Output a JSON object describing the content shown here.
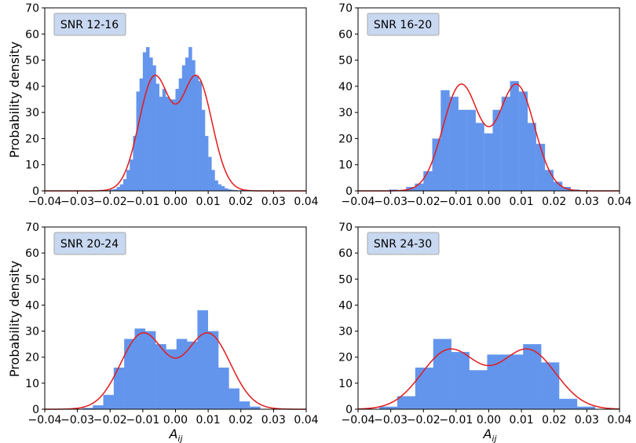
{
  "figure": {
    "ylabel": "Probability density",
    "xlabel": "A",
    "xlabel_sub": "ij"
  },
  "colors": {
    "bars": "#6495ED",
    "fit": "#E31A1C",
    "legend_bg": "#C8D8F0",
    "legend_border": "#A8A8A8"
  },
  "chart_data": [
    {
      "type": "bar",
      "title": "SNR 12-16",
      "xlim": [
        -0.04,
        0.04
      ],
      "ylim": [
        0,
        70
      ],
      "xticks": [
        -0.04,
        -0.03,
        -0.02,
        -0.01,
        0.0,
        0.01,
        0.02,
        0.03,
        0.04
      ],
      "xtick_labels": [
        "−0.04",
        "−0.03",
        "−0.02",
        "−0.01",
        "0.00",
        "0.01",
        "0.02",
        "0.03",
        "0.04"
      ],
      "yticks": [
        0,
        10,
        20,
        30,
        40,
        50,
        60,
        70
      ],
      "ytick_labels": [
        "0",
        "10",
        "20",
        "30",
        "40",
        "50",
        "60",
        "70"
      ],
      "bin_width": 0.001,
      "bin_left_edges": [
        -0.023,
        -0.022,
        -0.021,
        -0.02,
        -0.019,
        -0.018,
        -0.017,
        -0.016,
        -0.015,
        -0.014,
        -0.013,
        -0.012,
        -0.011,
        -0.01,
        -0.009,
        -0.008,
        -0.007,
        -0.006,
        -0.005,
        -0.004,
        -0.003,
        -0.002,
        -0.001,
        0.0,
        0.001,
        0.002,
        0.003,
        0.004,
        0.005,
        0.006,
        0.007,
        0.008,
        0.009,
        0.01,
        0.011,
        0.012,
        0.013,
        0.014,
        0.015,
        0.016,
        0.017,
        0.018,
        0.019,
        0.02
      ],
      "density": [
        0.2,
        0.3,
        0.2,
        0.5,
        0.7,
        1.5,
        2.5,
        4.5,
        8,
        12,
        21,
        38,
        43,
        53,
        55,
        51,
        48,
        41,
        36,
        39,
        36,
        35,
        35,
        39,
        43,
        48,
        51,
        55,
        50,
        44,
        42,
        31,
        21,
        13,
        8,
        4,
        2.5,
        1.8,
        1.0,
        0.6,
        0.4,
        0.3,
        0.2,
        0.5
      ],
      "fit": {
        "type": "two-gaussian",
        "components": [
          {
            "mu": -0.0065,
            "sigma": 0.0047,
            "weight": 0.5
          },
          {
            "mu": 0.0065,
            "sigma": 0.0047,
            "weight": 0.5
          }
        ]
      }
    },
    {
      "type": "bar",
      "title": "SNR 16-20",
      "xlim": [
        -0.04,
        0.04
      ],
      "ylim": [
        0,
        70
      ],
      "xticks": [
        -0.04,
        -0.03,
        -0.02,
        -0.01,
        0.0,
        0.01,
        0.02,
        0.03,
        0.04
      ],
      "xtick_labels": [
        "−0.04",
        "−0.03",
        "−0.02",
        "−0.01",
        "0.00",
        "0.01",
        "0.02",
        "0.03",
        "0.04"
      ],
      "yticks": [
        0,
        10,
        20,
        30,
        40,
        50,
        60,
        70
      ],
      "ytick_labels": [
        "0",
        "10",
        "20",
        "30",
        "40",
        "50",
        "60",
        "70"
      ],
      "bin_width": 0.00265,
      "bin_left_edges": [
        -0.0306,
        -0.0279,
        -0.0253,
        -0.0226,
        -0.02,
        -0.0173,
        -0.0147,
        -0.012,
        -0.0094,
        -0.0067,
        -0.0041,
        -0.0014,
        0.0012,
        0.0039,
        0.0065,
        0.0092,
        0.0118,
        0.0145,
        0.0171,
        0.0198,
        0.0224,
        0.0251
      ],
      "density": [
        0.5,
        0.2,
        1.5,
        2.8,
        7.5,
        20,
        38.5,
        36,
        31,
        31,
        26,
        22,
        31,
        36,
        42,
        38,
        26,
        18,
        8,
        3.5,
        1.5,
        0.5
      ],
      "fit": {
        "type": "two-gaussian",
        "components": [
          {
            "mu": -0.0085,
            "sigma": 0.0055,
            "weight": 0.5
          },
          {
            "mu": 0.0085,
            "sigma": 0.0055,
            "weight": 0.5
          }
        ]
      }
    },
    {
      "type": "bar",
      "title": "SNR 20-24",
      "xlim": [
        -0.04,
        0.04
      ],
      "ylim": [
        0,
        70
      ],
      "xticks": [
        -0.04,
        -0.03,
        -0.02,
        -0.01,
        0.0,
        0.01,
        0.02,
        0.03,
        0.04
      ],
      "xtick_labels": [
        "−0.04",
        "−0.03",
        "−0.02",
        "−0.01",
        "0.00",
        "0.01",
        "0.02",
        "0.03",
        "0.04"
      ],
      "yticks": [
        0,
        10,
        20,
        30,
        40,
        50,
        60,
        70
      ],
      "ytick_labels": [
        "0",
        "10",
        "20",
        "30",
        "40",
        "50",
        "60",
        "70"
      ],
      "bin_width": 0.0032,
      "bin_left_edges": [
        -0.0285,
        -0.0253,
        -0.0221,
        -0.0189,
        -0.0157,
        -0.0125,
        -0.0093,
        -0.0061,
        -0.0029,
        0.0003,
        0.0035,
        0.0067,
        0.0099,
        0.0131,
        0.0163,
        0.0195,
        0.0227
      ],
      "density": [
        0.5,
        1.5,
        5.5,
        16,
        27,
        31,
        30,
        25,
        23,
        27,
        26,
        38,
        30,
        16,
        8,
        3,
        1
      ],
      "fit": {
        "type": "two-gaussian",
        "components": [
          {
            "mu": -0.01,
            "sigma": 0.0068,
            "weight": 0.5
          },
          {
            "mu": 0.01,
            "sigma": 0.0068,
            "weight": 0.5
          }
        ]
      }
    },
    {
      "type": "bar",
      "title": "SNR 24-30",
      "xlim": [
        -0.04,
        0.04
      ],
      "ylim": [
        0,
        70
      ],
      "xticks": [
        -0.04,
        -0.03,
        -0.02,
        -0.01,
        0.0,
        0.01,
        0.02,
        0.03,
        0.04
      ],
      "xtick_labels": [
        "−0.04",
        "−0.03",
        "−0.02",
        "−0.01",
        "0.00",
        "0.01",
        "0.02",
        "0.03",
        "0.04"
      ],
      "yticks": [
        0,
        10,
        20,
        30,
        40,
        50,
        60,
        70
      ],
      "ytick_labels": [
        "0",
        "10",
        "20",
        "30",
        "40",
        "50",
        "60",
        "70"
      ],
      "bin_width": 0.0055,
      "bin_left_edges": [
        -0.0335,
        -0.028,
        -0.0225,
        -0.017,
        -0.0115,
        -0.006,
        -0.0005,
        0.005,
        0.0105,
        0.016,
        0.0215,
        0.027
      ],
      "density": [
        1,
        5,
        16,
        27,
        22,
        15,
        21,
        21,
        25,
        18,
        4,
        1
      ],
      "fit": {
        "type": "two-gaussian",
        "components": [
          {
            "mu": -0.012,
            "sigma": 0.0085,
            "weight": 0.5
          },
          {
            "mu": 0.012,
            "sigma": 0.0085,
            "weight": 0.5
          }
        ]
      }
    }
  ]
}
